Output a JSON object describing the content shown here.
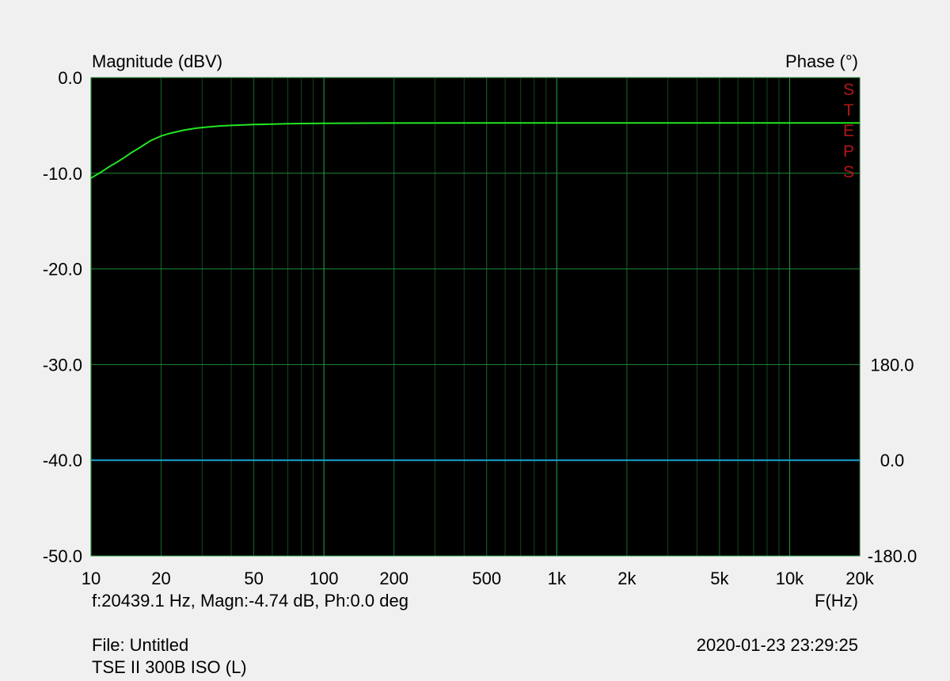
{
  "chart_data": {
    "type": "line",
    "left_axis_title": "Magnitude (dBV)",
    "right_axis_title": "Phase (°)",
    "xlabel": "F(Hz)",
    "x_scale": "log",
    "xlim": [
      10,
      20000
    ],
    "ylim": [
      -50,
      0
    ],
    "phase_lim": [
      -180,
      180
    ],
    "x_major_ticks": [
      {
        "value": 10,
        "label": "10"
      },
      {
        "value": 20,
        "label": "20"
      },
      {
        "value": 50,
        "label": "50"
      },
      {
        "value": 100,
        "label": "100"
      },
      {
        "value": 200,
        "label": "200"
      },
      {
        "value": 500,
        "label": "500"
      },
      {
        "value": 1000,
        "label": "1k"
      },
      {
        "value": 2000,
        "label": "2k"
      },
      {
        "value": 5000,
        "label": "5k"
      },
      {
        "value": 10000,
        "label": "10k"
      },
      {
        "value": 20000,
        "label": "20k"
      }
    ],
    "y_ticks": [
      {
        "value": 0,
        "label": "0.0"
      },
      {
        "value": -10,
        "label": "-10.0"
      },
      {
        "value": -20,
        "label": "-20.0"
      },
      {
        "value": -30,
        "label": "-30.0"
      },
      {
        "value": -40,
        "label": "-40.0"
      },
      {
        "value": -50,
        "label": "-50.0"
      }
    ],
    "phase_ticks": [
      {
        "value": 180,
        "label": "180.0"
      },
      {
        "value": 0,
        "label": "0.0"
      },
      {
        "value": -180,
        "label": "-180.0"
      }
    ],
    "grid": true,
    "vertical_label": "STEPS",
    "series": [
      {
        "axis": "magnitude",
        "color": "#22e622",
        "x": [
          10,
          11,
          12,
          13,
          14,
          15,
          16,
          18,
          20,
          22,
          25,
          28,
          32,
          36,
          40,
          50,
          60,
          70,
          80,
          100,
          150,
          200,
          500,
          1000,
          2000,
          5000,
          10000,
          20000
        ],
        "y": [
          -10.5,
          -9.9,
          -9.3,
          -8.8,
          -8.3,
          -7.8,
          -7.4,
          -6.6,
          -6.1,
          -5.8,
          -5.5,
          -5.3,
          -5.15,
          -5.05,
          -5.0,
          -4.9,
          -4.87,
          -4.82,
          -4.8,
          -4.78,
          -4.76,
          -4.75,
          -4.74,
          -4.74,
          -4.74,
          -4.74,
          -4.74,
          -4.74
        ]
      },
      {
        "axis": "phase",
        "color": "#1aa0d0",
        "x": [
          10,
          20000
        ],
        "y": [
          0,
          0
        ]
      }
    ],
    "readout": "f:20439.1 Hz, Magn:-4.74 dB, Ph:0.0 deg",
    "file": "File: Untitled",
    "timestamp": "2020-01-23 23:29:25",
    "device": "TSE II 300B ISO (L)"
  }
}
